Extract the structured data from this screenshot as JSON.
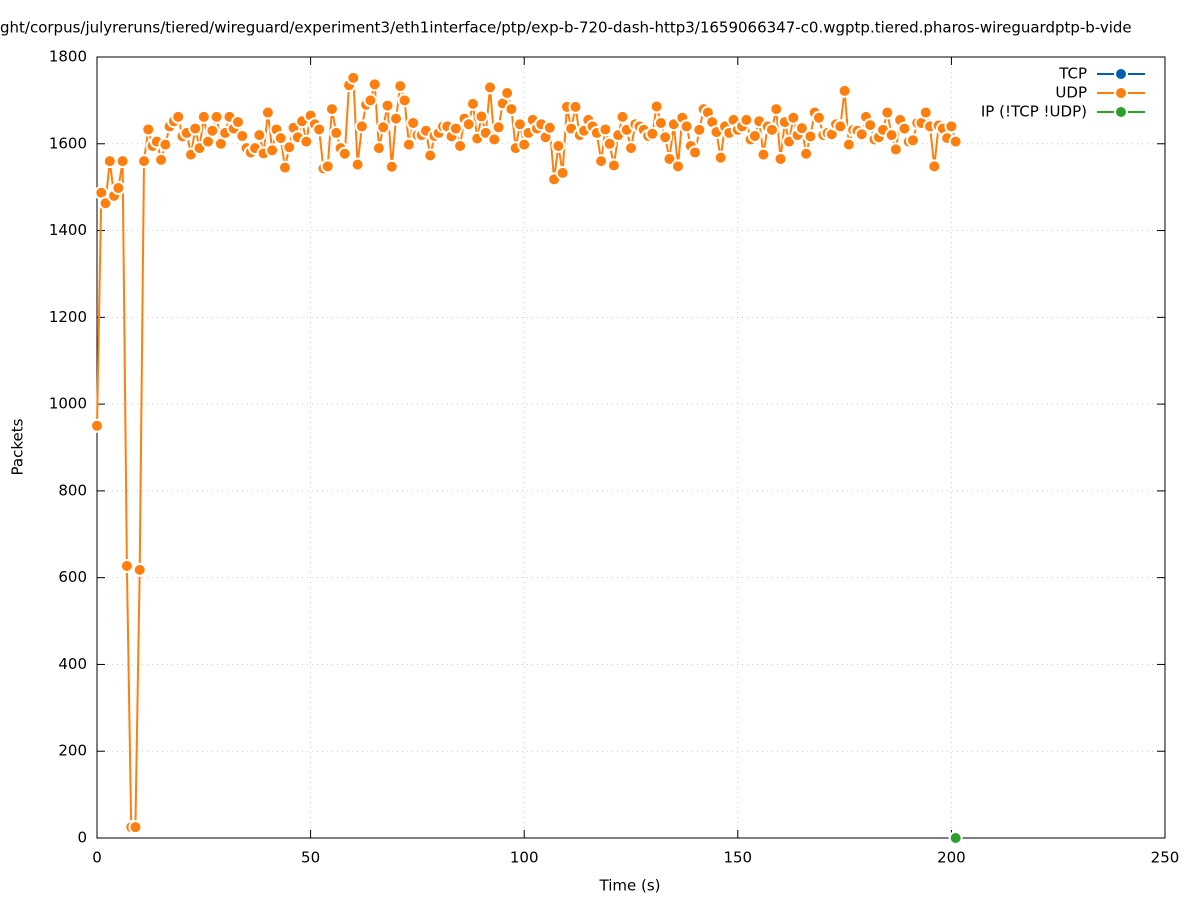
{
  "chart_data": {
    "type": "line",
    "title": "ght/corpus/julyreruns/tiered/wireguard/experiment3/eth1interface/ptp/exp-b-720-dash-http3/1659066347-c0.wgptp.tiered.pharos-wireguardptp-b-vide",
    "x_label": "Time (s)",
    "y_label": "Packets",
    "xlim": [
      0,
      250
    ],
    "xticks": [
      0,
      50,
      100,
      150,
      200,
      250
    ],
    "ylim": [
      0,
      1800
    ],
    "yticks": [
      0,
      200,
      400,
      600,
      800,
      1000,
      1200,
      1400,
      1600,
      1800
    ],
    "grid": true,
    "legend": "top right",
    "series": [
      {
        "name": "TCP",
        "color": "#0060ad",
        "x": [],
        "values": []
      },
      {
        "name": "UDP",
        "color": "#ff7f0e",
        "x": [
          0,
          1,
          2,
          3,
          4,
          5,
          6,
          7,
          8,
          9,
          10,
          11,
          12,
          13,
          14,
          15,
          16,
          17,
          18,
          19,
          20,
          21,
          22,
          23,
          24,
          25,
          26,
          27,
          28,
          29,
          30,
          31,
          32,
          33,
          34,
          35,
          36,
          37,
          38,
          39,
          40,
          41,
          42,
          43,
          44,
          45,
          46,
          47,
          48,
          49,
          50,
          51,
          52,
          53,
          54,
          55,
          56,
          57,
          58,
          59,
          60,
          61,
          62,
          63,
          64,
          65,
          66,
          67,
          68,
          69,
          70,
          71,
          72,
          73,
          74,
          75,
          76,
          77,
          78,
          79,
          80,
          81,
          82,
          83,
          84,
          85,
          86,
          87,
          88,
          89,
          90,
          91,
          92,
          93,
          94,
          95,
          96,
          97,
          98,
          99,
          100,
          101,
          102,
          103,
          104,
          105,
          106,
          107,
          108,
          109,
          110,
          111,
          112,
          113,
          114,
          115,
          116,
          117,
          118,
          119,
          120,
          121,
          122,
          123,
          124,
          125,
          126,
          127,
          128,
          129,
          130,
          131,
          132,
          133,
          134,
          135,
          136,
          137,
          138,
          139,
          140,
          141,
          142,
          143,
          144,
          145,
          146,
          147,
          148,
          149,
          150,
          151,
          152,
          153,
          154,
          155,
          156,
          157,
          158,
          159,
          160,
          161,
          162,
          163,
          164,
          165,
          166,
          167,
          168,
          169,
          170,
          171,
          172,
          173,
          174,
          175,
          176,
          177,
          178,
          179,
          180,
          181,
          182,
          183,
          184,
          185,
          186,
          187,
          188,
          189,
          190,
          191,
          192,
          193,
          194,
          195,
          196,
          197,
          198,
          199,
          200,
          201
        ],
        "values": [
          950,
          1487,
          1463,
          1560,
          1480,
          1498,
          1560,
          627,
          25,
          25,
          618,
          1560,
          1633,
          1595,
          1605,
          1563,
          1598,
          1640,
          1652,
          1662,
          1617,
          1625,
          1575,
          1635,
          1590,
          1662,
          1605,
          1630,
          1662,
          1600,
          1625,
          1662,
          1635,
          1650,
          1618,
          1590,
          1580,
          1590,
          1620,
          1578,
          1672,
          1585,
          1633,
          1613,
          1545,
          1592,
          1637,
          1615,
          1652,
          1605,
          1665,
          1645,
          1633,
          1543,
          1548,
          1680,
          1625,
          1590,
          1577,
          1735,
          1752,
          1552,
          1640,
          1690,
          1700,
          1737,
          1590,
          1638,
          1688,
          1547,
          1658,
          1733,
          1700,
          1598,
          1648,
          1620,
          1620,
          1630,
          1573,
          1618,
          1625,
          1640,
          1640,
          1617,
          1635,
          1595,
          1658,
          1645,
          1692,
          1612,
          1663,
          1625,
          1730,
          1610,
          1638,
          1693,
          1717,
          1680,
          1590,
          1645,
          1598,
          1625,
          1655,
          1635,
          1645,
          1615,
          1637,
          1518,
          1595,
          1533,
          1685,
          1635,
          1685,
          1620,
          1630,
          1655,
          1640,
          1625,
          1560,
          1633,
          1600,
          1550,
          1620,
          1662,
          1632,
          1590,
          1645,
          1640,
          1632,
          1618,
          1623,
          1686,
          1648,
          1615,
          1565,
          1645,
          1548,
          1660,
          1640,
          1595,
          1580,
          1632,
          1680,
          1672,
          1650,
          1627,
          1568,
          1640,
          1625,
          1655,
          1632,
          1640,
          1655,
          1610,
          1618,
          1652,
          1575,
          1640,
          1632,
          1680,
          1565,
          1650,
          1605,
          1660,
          1620,
          1636,
          1577,
          1617,
          1672,
          1660,
          1620,
          1625,
          1622,
          1645,
          1640,
          1722,
          1598,
          1632,
          1630,
          1622,
          1662,
          1643,
          1610,
          1615,
          1632,
          1672,
          1620,
          1587,
          1655,
          1635,
          1605,
          1608,
          1648,
          1648,
          1672,
          1640,
          1548,
          1642,
          1635,
          1613,
          1640,
          1605
        ]
      },
      {
        "name": "IP (!TCP  !UDP)",
        "color": "#2ca02c",
        "x": [
          201
        ],
        "values": [
          0
        ]
      }
    ]
  }
}
